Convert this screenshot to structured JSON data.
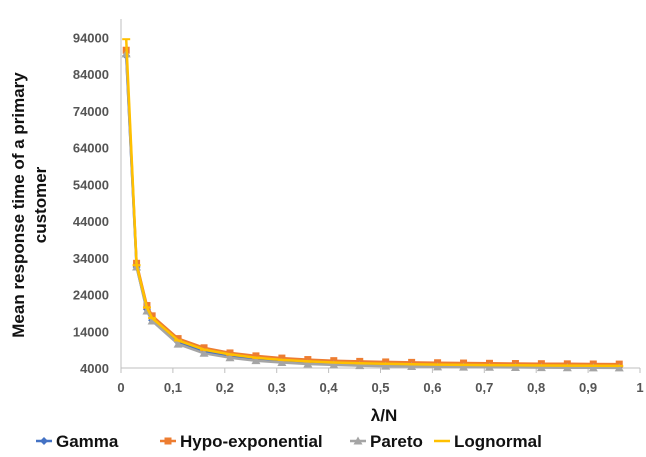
{
  "chart_data": {
    "type": "line",
    "title": "",
    "xlabel": "λ/N",
    "ylabel_lines": [
      "Mean response time of a primary",
      "customer"
    ],
    "xlim": [
      0,
      1
    ],
    "ylim": [
      4000,
      99000
    ],
    "x_ticks": [
      "0",
      "0,1",
      "0,2",
      "0,3",
      "0,4",
      "0,5",
      "0,6",
      "0,7",
      "0,8",
      "0,9",
      "1"
    ],
    "y_ticks": [
      4000,
      14000,
      24000,
      34000,
      44000,
      54000,
      64000,
      74000,
      84000,
      94000
    ],
    "grid": false,
    "legend_position": "bottom",
    "x": [
      0.01,
      0.03,
      0.05,
      0.06,
      0.11,
      0.16,
      0.21,
      0.26,
      0.31,
      0.36,
      0.41,
      0.46,
      0.51,
      0.56,
      0.61,
      0.66,
      0.71,
      0.76,
      0.81,
      0.86,
      0.91,
      0.96
    ],
    "series": [
      {
        "name": "Gamma",
        "color": "#4472C4",
        "marker": "diamond",
        "values": [
          89000,
          31500,
          20000,
          17000,
          11000,
          8500,
          7200,
          6400,
          5900,
          5500,
          5250,
          5050,
          4900,
          4800,
          4700,
          4620,
          4560,
          4500,
          4460,
          4420,
          4390,
          4360
        ]
      },
      {
        "name": "Hypo-exponential",
        "color": "#ED7D31",
        "marker": "square",
        "values": [
          90500,
          32500,
          21000,
          18200,
          12000,
          9500,
          8100,
          7300,
          6700,
          6300,
          6000,
          5800,
          5650,
          5530,
          5430,
          5350,
          5280,
          5220,
          5170,
          5130,
          5090,
          5060
        ]
      },
      {
        "name": "Pareto",
        "color": "#A5A5A5",
        "marker": "triangle",
        "values": [
          89500,
          31500,
          19500,
          16800,
          10500,
          8000,
          6800,
          6000,
          5500,
          5100,
          4850,
          4650,
          4500,
          4400,
          4320,
          4250,
          4200,
          4150,
          4110,
          4080,
          4050,
          4030
        ]
      },
      {
        "name": "Lognormal",
        "color": "#FFC000",
        "marker": "none",
        "values": [
          93500,
          32000,
          20500,
          17600,
          11500,
          9000,
          7700,
          6800,
          6200,
          5800,
          5500,
          5300,
          5150,
          5030,
          4930,
          4850,
          4790,
          4730,
          4680,
          4640,
          4610,
          4580
        ]
      }
    ]
  }
}
